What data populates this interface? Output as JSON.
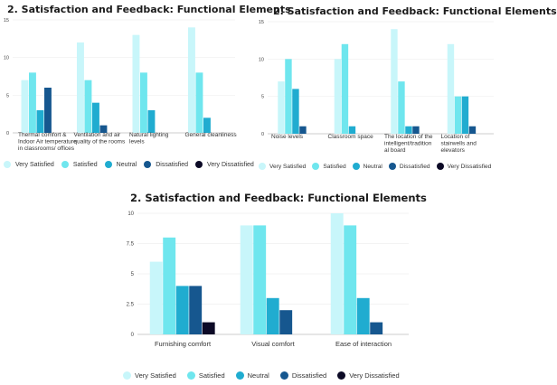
{
  "series_colors": [
    "#c8f6fa",
    "#6fe6ee",
    "#20acd0",
    "#16578f",
    "#0c0a26"
  ],
  "chart_data": [
    {
      "type": "bar",
      "title": "2. Satisfaction and Feedback: Functional Elements",
      "categories": [
        [
          "Thermal comfort &",
          "Indoor Air temperature",
          "in classrooms/ offices"
        ],
        [
          "Ventilation and air",
          "quality of the rooms"
        ],
        [
          "Natural lighting",
          "levels"
        ],
        [
          "General cleanliness"
        ]
      ],
      "yticks": [
        "0",
        "5",
        "10",
        "15"
      ],
      "ylim": [
        0,
        15
      ],
      "series": [
        {
          "name": "Very Satisfied",
          "values": [
            7,
            12,
            13,
            14
          ]
        },
        {
          "name": "Satisfied",
          "values": [
            8,
            7,
            8,
            8
          ]
        },
        {
          "name": "Neutral",
          "values": [
            3,
            4,
            3,
            2
          ]
        },
        {
          "name": "Dissatisfied",
          "values": [
            6,
            1,
            0,
            0
          ]
        },
        {
          "name": "Very Dissatisfied",
          "values": [
            0,
            0,
            0,
            0
          ]
        }
      ],
      "legend_position": "bottom"
    },
    {
      "type": "bar",
      "title": "2. Satisfaction and Feedback: Functional Elements",
      "categories": [
        [
          "Noise levels"
        ],
        [
          "Classroom space"
        ],
        [
          "The location of the",
          "intelligent/tradition",
          "al board"
        ],
        [
          "Location of",
          "stairwells and",
          "elevators"
        ]
      ],
      "yticks": [
        "0",
        "5",
        "10",
        "15"
      ],
      "ylim": [
        0,
        15
      ],
      "series": [
        {
          "name": "Very Satisfied",
          "values": [
            7,
            10,
            14,
            12
          ]
        },
        {
          "name": "Satisfied",
          "values": [
            10,
            12,
            7,
            5
          ]
        },
        {
          "name": "Neutral",
          "values": [
            6,
            1,
            1,
            5
          ]
        },
        {
          "name": "Dissatisfied",
          "values": [
            1,
            0,
            1,
            1
          ]
        },
        {
          "name": "Very Dissatisfied",
          "values": [
            0,
            0,
            0,
            0
          ]
        }
      ],
      "legend_position": "bottom"
    },
    {
      "type": "bar",
      "title": "2. Satisfaction and Feedback: Functional Elements",
      "categories": [
        [
          "Furnishing comfort"
        ],
        [
          "Visual comfort"
        ],
        [
          "Ease of interaction"
        ]
      ],
      "yticks": [
        "0",
        "2.5",
        "5",
        "7.5",
        "10"
      ],
      "ylim": [
        0,
        10
      ],
      "series": [
        {
          "name": "Very Satisfied",
          "values": [
            6,
            9,
            10
          ]
        },
        {
          "name": "Satisfied",
          "values": [
            8,
            9,
            9
          ]
        },
        {
          "name": "Neutral",
          "values": [
            4,
            3,
            3
          ]
        },
        {
          "name": "Dissatisfied",
          "values": [
            4,
            2,
            1
          ]
        },
        {
          "name": "Very Dissatisfied",
          "values": [
            1,
            0,
            0
          ]
        }
      ],
      "legend_position": "bottom"
    }
  ]
}
